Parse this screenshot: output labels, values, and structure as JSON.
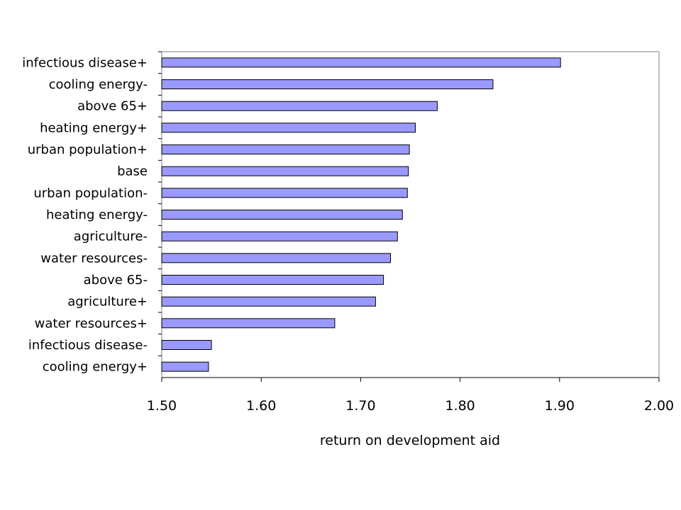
{
  "chart_data": {
    "type": "bar",
    "orientation": "horizontal",
    "categories": [
      "infectious disease+",
      "cooling energy-",
      "above 65+",
      "heating energy+",
      "urban population+",
      "base",
      "urban population-",
      "heating energy-",
      "agriculture-",
      "water resources-",
      "above 65-",
      "agriculture+",
      "water resources+",
      "infectious disease-",
      "cooling energy+"
    ],
    "values": [
      1.901,
      1.833,
      1.777,
      1.755,
      1.749,
      1.748,
      1.747,
      1.742,
      1.737,
      1.73,
      1.723,
      1.715,
      1.674,
      1.55,
      1.547
    ],
    "xlim": [
      1.5,
      2.0
    ],
    "xticks": [
      "1.50",
      "1.60",
      "1.70",
      "1.80",
      "1.90",
      "2.00"
    ],
    "xlabel": "return on development aid",
    "ylabel": "",
    "title": "",
    "grid": false,
    "legend": false,
    "bar_color": "#9999ff",
    "bar_edge_color": "#000000"
  }
}
